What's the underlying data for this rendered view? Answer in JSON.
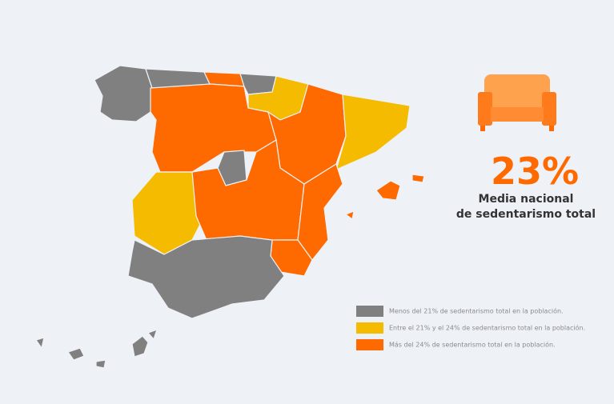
{
  "headline": {
    "value": "23%",
    "caption_lines": [
      "Media nacional",
      "de sedentarismo total"
    ]
  },
  "legend": [
    {
      "label": "Menos del 21% de sedentarismo total en la población.",
      "color": "#808080"
    },
    {
      "label": "Entre el 21% y el 24% de sedentarismo total en la población.",
      "color": "#f5bb00"
    },
    {
      "label": "Más del 24% de sedentarismo total en la población.",
      "color": "#ff6a00"
    }
  ]
}
